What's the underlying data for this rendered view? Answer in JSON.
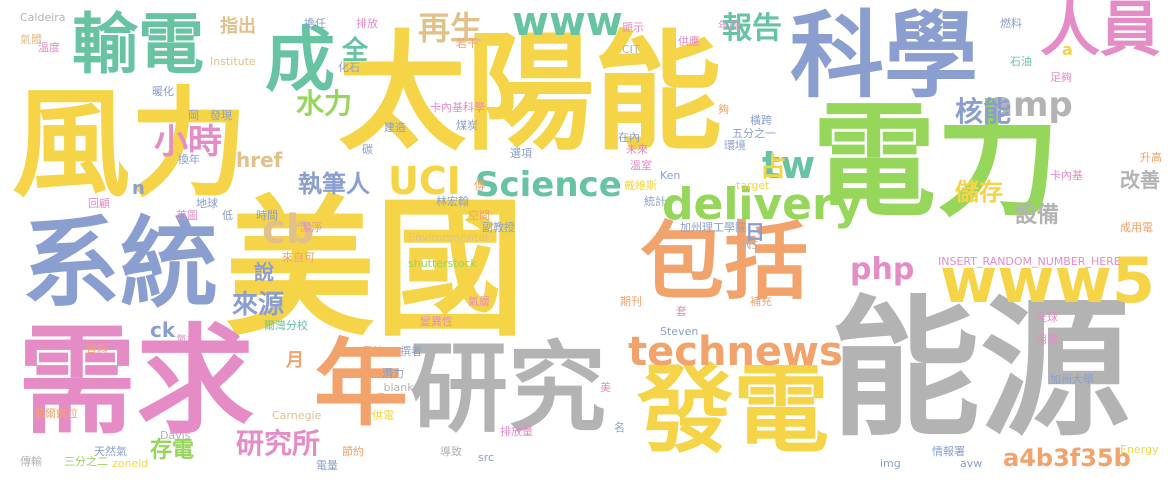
{
  "palette": {
    "yellow": "#f5d547",
    "blue": "#8a9fcf",
    "green": "#96d65b",
    "pink": "#e58cc7",
    "gray": "#b3b3b3",
    "teal": "#67c3a2",
    "orange": "#f2a26b",
    "tan": "#e2c08a"
  },
  "words": [
    {
      "id": "w01",
      "text": "太陽能",
      "color": "#f5d547"
    },
    {
      "id": "w02",
      "text": "美國",
      "color": "#f5d547"
    },
    {
      "id": "w03",
      "text": "風力",
      "color": "#f5d547"
    },
    {
      "id": "w04",
      "text": "電力",
      "color": "#96d65b"
    },
    {
      "id": "w05",
      "text": "能源",
      "color": "#b3b3b3"
    },
    {
      "id": "w06",
      "text": "系統",
      "color": "#8a9fcf"
    },
    {
      "id": "w07",
      "text": "需求",
      "color": "#e58cc7"
    },
    {
      "id": "w08",
      "text": "科學",
      "color": "#8a9fcf"
    },
    {
      "id": "w09",
      "text": "研究",
      "color": "#b3b3b3"
    },
    {
      "id": "w10",
      "text": "發電",
      "color": "#f5d547"
    },
    {
      "id": "w11",
      "text": "包括",
      "color": "#f2a26b"
    },
    {
      "id": "w12",
      "text": "輸電",
      "color": "#67c3a2"
    },
    {
      "id": "w13",
      "text": "人員",
      "color": "#e58cc7"
    },
    {
      "id": "w14",
      "text": "年",
      "color": "#f2a26b"
    },
    {
      "id": "w15",
      "text": "成",
      "color": "#67c3a2"
    },
    {
      "id": "w16",
      "text": "www5",
      "color": "#f5d547"
    },
    {
      "id": "w17",
      "text": "technews",
      "color": "#f2a26b"
    },
    {
      "id": "w18",
      "text": "delivery",
      "color": "#96d65b"
    },
    {
      "id": "w19",
      "text": "Science",
      "color": "#67c3a2"
    },
    {
      "id": "w20",
      "text": "www",
      "color": "#67c3a2"
    },
    {
      "id": "w21",
      "text": "amp",
      "color": "#b3b3b3"
    },
    {
      "id": "w22",
      "text": "UCI",
      "color": "#f5d547"
    },
    {
      "id": "w23",
      "text": "cb",
      "color": "#e2c08a"
    },
    {
      "id": "w24",
      "text": "php",
      "color": "#e58cc7"
    },
    {
      "id": "w25",
      "text": "tw",
      "color": "#67c3a2"
    },
    {
      "id": "w26",
      "text": "再生",
      "color": "#e2c08a"
    },
    {
      "id": "w27",
      "text": "報告",
      "color": "#67c3a2"
    },
    {
      "id": "w28",
      "text": "核能",
      "color": "#8a9fcf"
    },
    {
      "id": "w29",
      "text": "水力",
      "color": "#96d65b"
    },
    {
      "id": "w30",
      "text": "全",
      "color": "#67c3a2"
    },
    {
      "id": "w31",
      "text": "小時",
      "color": "#e58cc7"
    },
    {
      "id": "w32",
      "text": "執筆人",
      "color": "#8a9fcf"
    },
    {
      "id": "w33",
      "text": "研究所",
      "color": "#e58cc7"
    },
    {
      "id": "w34",
      "text": "a4b3f35b",
      "color": "#f2a26b"
    },
    {
      "id": "w35",
      "text": "儲存",
      "color": "#f5d547"
    },
    {
      "id": "w36",
      "text": "設備",
      "color": "#b3b3b3"
    },
    {
      "id": "w37",
      "text": "改善",
      "color": "#b3b3b3"
    },
    {
      "id": "w38",
      "text": "占",
      "color": "#f5d547"
    },
    {
      "id": "w39",
      "text": "日",
      "color": "#8a9fcf"
    },
    {
      "id": "w40",
      "text": "來源",
      "color": "#8a9fcf"
    },
    {
      "id": "w41",
      "text": "說",
      "color": "#8a9fcf"
    },
    {
      "id": "w42",
      "text": "存電",
      "color": "#96d65b"
    },
    {
      "id": "w43",
      "text": "ck",
      "color": "#8a9fcf"
    },
    {
      "id": "w44",
      "text": "月",
      "color": "#f2a26b"
    },
    {
      "id": "w45",
      "text": "href",
      "color": "#e2c08a"
    },
    {
      "id": "w46",
      "text": "指出",
      "color": "#e2c08a"
    },
    {
      "id": "w47",
      "text": "a",
      "color": "#f5d547"
    },
    {
      "id": "w48",
      "text": "n",
      "color": "#8a9fcf"
    },
    {
      "id": "w49",
      "text": "Caldeira",
      "color": "#b3b3b3"
    },
    {
      "id": "w50",
      "text": "氣體",
      "color": "#e2c08a"
    },
    {
      "id": "w51",
      "text": "溫度",
      "color": "#e58cc7"
    },
    {
      "id": "w52",
      "text": "暖化",
      "color": "#8a9fcf"
    },
    {
      "id": "w53",
      "text": "回顧",
      "color": "#e58cc7"
    },
    {
      "id": "w54",
      "text": "凱爾戴拉",
      "color": "#f2a26b"
    },
    {
      "id": "w55",
      "text": "傳輸",
      "color": "#b3b3b3"
    },
    {
      "id": "w56",
      "text": "三分之二",
      "color": "#96d65b"
    },
    {
      "id": "w57",
      "text": "天然氣",
      "color": "#8a9fcf"
    },
    {
      "id": "w58",
      "text": "zoneid",
      "color": "#f5d547"
    },
    {
      "id": "w59",
      "text": "Davis",
      "color": "#b3b3b3"
    },
    {
      "id": "w60",
      "text": "Carnegie",
      "color": "#e2c08a"
    },
    {
      "id": "w61",
      "text": "Institute",
      "color": "#e2c08a"
    },
    {
      "id": "w62",
      "text": "Environmental",
      "color": "#e2c08a"
    },
    {
      "id": "w63",
      "text": "shutterstock",
      "color": "#96d65b"
    },
    {
      "id": "w64",
      "text": "_blank",
      "color": "#b3b3b3"
    },
    {
      "id": "w65",
      "text": "Steven",
      "color": "#8a9fcf"
    },
    {
      "id": "w66",
      "text": "Ken",
      "color": "#8a9fcf"
    },
    {
      "id": "w67",
      "text": "target",
      "color": "#f5d547"
    },
    {
      "id": "w68",
      "text": "INSERT_RANDOM_NUMBER_HERE",
      "color": "#e58cc7"
    },
    {
      "id": "w69",
      "text": "CIT",
      "color": "#b3b3b3"
    },
    {
      "id": "w70",
      "text": "src",
      "color": "#8a9fcf"
    },
    {
      "id": "w71",
      "text": "img",
      "color": "#8a9fcf"
    },
    {
      "id": "w72",
      "text": "avw",
      "color": "#8a9fcf"
    },
    {
      "id": "w73",
      "text": "Energy",
      "color": "#f5d547"
    },
    {
      "id": "w74",
      "text": "卡內基科學",
      "color": "#e58cc7"
    },
    {
      "id": "w75",
      "text": "加州理工學院",
      "color": "#8a9fcf"
    },
    {
      "id": "w76",
      "text": "加州大學",
      "color": "#8a9fcf"
    },
    {
      "id": "w77",
      "text": "爾灣分校",
      "color": "#67c3a2"
    },
    {
      "id": "w78",
      "text": "卡內基",
      "color": "#e58cc7"
    },
    {
      "id": "w79",
      "text": "成用電",
      "color": "#f2a26b"
    },
    {
      "id": "w80",
      "text": "升高",
      "color": "#f2a26b"
    },
    {
      "id": "w81",
      "text": "全球",
      "color": "#e58cc7"
    },
    {
      "id": "w82",
      "text": "用電",
      "color": "#e58cc7"
    },
    {
      "id": "w83",
      "text": "情報署",
      "color": "#8a9fcf"
    },
    {
      "id": "w84",
      "text": "電量",
      "color": "#8a9fcf"
    },
    {
      "id": "w85",
      "text": "排放量",
      "color": "#e58cc7"
    },
    {
      "id": "w86",
      "text": "導致",
      "color": "#b3b3b3"
    },
    {
      "id": "w87",
      "text": "潛力",
      "color": "#8a9fcf"
    },
    {
      "id": "w88",
      "text": "看法",
      "color": "#f2a26b"
    },
    {
      "id": "w89",
      "text": "節約",
      "color": "#f2a26b"
    },
    {
      "id": "w90",
      "text": "供電",
      "color": "#f5d547"
    },
    {
      "id": "w91",
      "text": "資料",
      "color": "#f2a26b"
    },
    {
      "id": "w92",
      "text": "氣象",
      "color": "#e58cc7"
    },
    {
      "id": "w93",
      "text": "變異性",
      "color": "#e58cc7"
    },
    {
      "id": "w94",
      "text": "期刊",
      "color": "#f2a26b"
    },
    {
      "id": "w95",
      "text": "氣層",
      "color": "#e58cc7"
    },
    {
      "id": "w96",
      "text": "補充",
      "color": "#f2a26b"
    },
    {
      "id": "w97",
      "text": "副教授",
      "color": "#8a9fcf"
    },
    {
      "id": "w98",
      "text": "空間",
      "color": "#f2a26b"
    },
    {
      "id": "w99",
      "text": "林宏翰",
      "color": "#8a9fcf"
    },
    {
      "id": "w100",
      "text": "戴維斯",
      "color": "#f5d547"
    },
    {
      "id": "w101",
      "text": "溫室",
      "color": "#e58cc7"
    },
    {
      "id": "w102",
      "text": "未來",
      "color": "#e58cc7"
    },
    {
      "id": "w103",
      "text": "選項",
      "color": "#8a9fcf"
    },
    {
      "id": "w104",
      "text": "在內",
      "color": "#8a9fcf"
    },
    {
      "id": "w105",
      "text": "環境",
      "color": "#8a9fcf"
    },
    {
      "id": "w106",
      "text": "五分之一",
      "color": "#8a9fcf"
    },
    {
      "id": "w107",
      "text": "橫跨",
      "color": "#8a9fcf"
    },
    {
      "id": "w108",
      "text": "年前",
      "color": "#e58cc7"
    },
    {
      "id": "w109",
      "text": "供應",
      "color": "#e58cc7"
    },
    {
      "id": "w110",
      "text": "燃料",
      "color": "#8a9fcf"
    },
    {
      "id": "w111",
      "text": "石油",
      "color": "#67c3a2"
    },
    {
      "id": "w112",
      "text": "足夠",
      "color": "#e58cc7"
    },
    {
      "id": "w113",
      "text": "顯示",
      "color": "#e58cc7"
    },
    {
      "id": "w114",
      "text": "若干",
      "color": "#f2a26b"
    },
    {
      "id": "w115",
      "text": "排放",
      "color": "#e58cc7"
    },
    {
      "id": "w116",
      "text": "擔任",
      "color": "#8a9fcf"
    },
    {
      "id": "w117",
      "text": "化石",
      "color": "#8a9fcf"
    },
    {
      "id": "w118",
      "text": "建造",
      "color": "#8a9fcf"
    },
    {
      "id": "w119",
      "text": "發現",
      "color": "#8a9fcf"
    },
    {
      "id": "w120",
      "text": "煤炭",
      "color": "#8a9fcf"
    },
    {
      "id": "w121",
      "text": "換年",
      "color": "#8a9fcf"
    },
    {
      "id": "w122",
      "text": "首圖",
      "color": "#e58cc7"
    },
    {
      "id": "w123",
      "text": "地球",
      "color": "#8a9fcf"
    },
    {
      "id": "w124",
      "text": "低",
      "color": "#8a9fcf"
    },
    {
      "id": "w125",
      "text": "時間",
      "color": "#8a9fcf"
    },
    {
      "id": "w126",
      "text": "潔淨",
      "color": "#e58cc7"
    },
    {
      "id": "w127",
      "text": "來自可",
      "color": "#f2a26b"
    },
    {
      "id": "w128",
      "text": "統計",
      "color": "#8a9fcf"
    },
    {
      "id": "w129",
      "text": "名",
      "color": "#8a9fcf"
    },
    {
      "id": "w130",
      "text": "美",
      "color": "#e58cc7"
    },
    {
      "id": "w131",
      "text": "INS",
      "color": "#b3b3b3"
    },
    {
      "id": "w132",
      "text": "岡",
      "color": "#8a9fcf"
    },
    {
      "id": "w133",
      "text": "碳",
      "color": "#8a9fcf"
    },
    {
      "id": "w134",
      "text": "撰者",
      "color": "#8a9fcf"
    },
    {
      "id": "w135",
      "text": "傳",
      "color": "#f2a26b"
    },
    {
      "id": "w136",
      "text": "套",
      "color": "#e58cc7"
    },
    {
      "id": "w137",
      "text": "夠",
      "color": "#f2a26b"
    }
  ]
}
